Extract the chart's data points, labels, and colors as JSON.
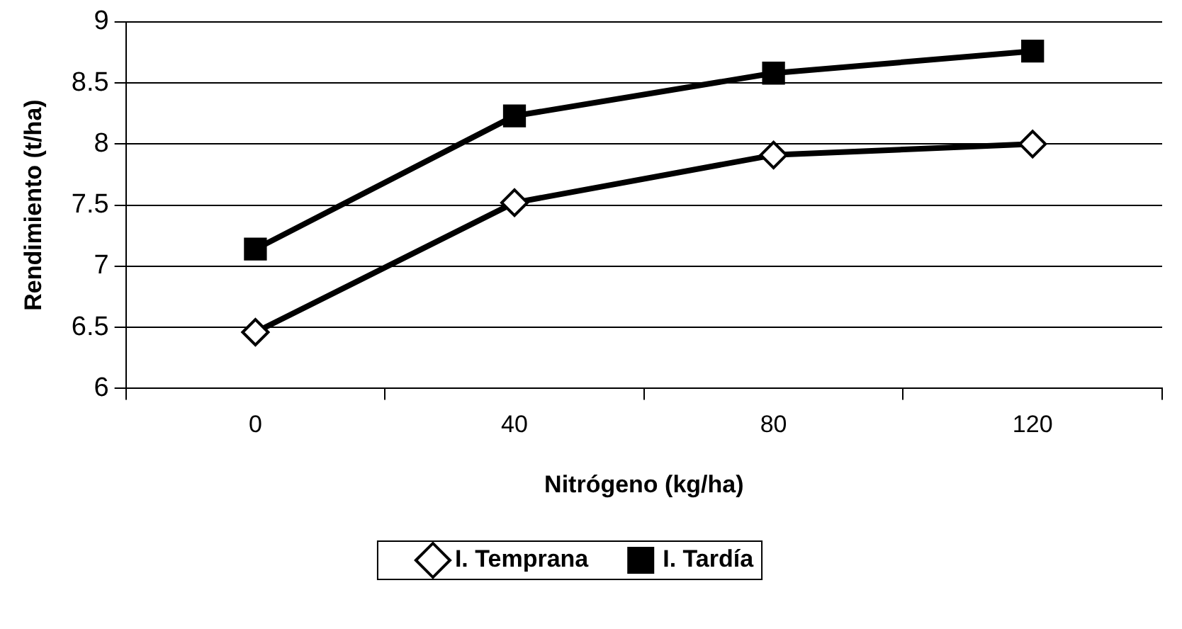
{
  "chart_data": {
    "type": "line",
    "xlabel": "Nitrógeno (kg/ha)",
    "ylabel": "Rendimiento (t/ha)",
    "categories": [
      "0",
      "40",
      "80",
      "120"
    ],
    "series": [
      {
        "name": "I. Temprana",
        "color": "#000000",
        "marker": "diamond",
        "values": [
          6.46,
          7.52,
          7.91,
          8.0
        ]
      },
      {
        "name": "I. Tardía",
        "color": "#000000",
        "marker": "square",
        "values": [
          7.14,
          8.23,
          8.58,
          8.76
        ]
      }
    ],
    "ylim": [
      6,
      9
    ],
    "yticks": [
      6,
      6.5,
      7,
      7.5,
      8,
      8.5,
      9
    ],
    "grid": "y",
    "legend": "bottom",
    "line_style": "solid"
  }
}
